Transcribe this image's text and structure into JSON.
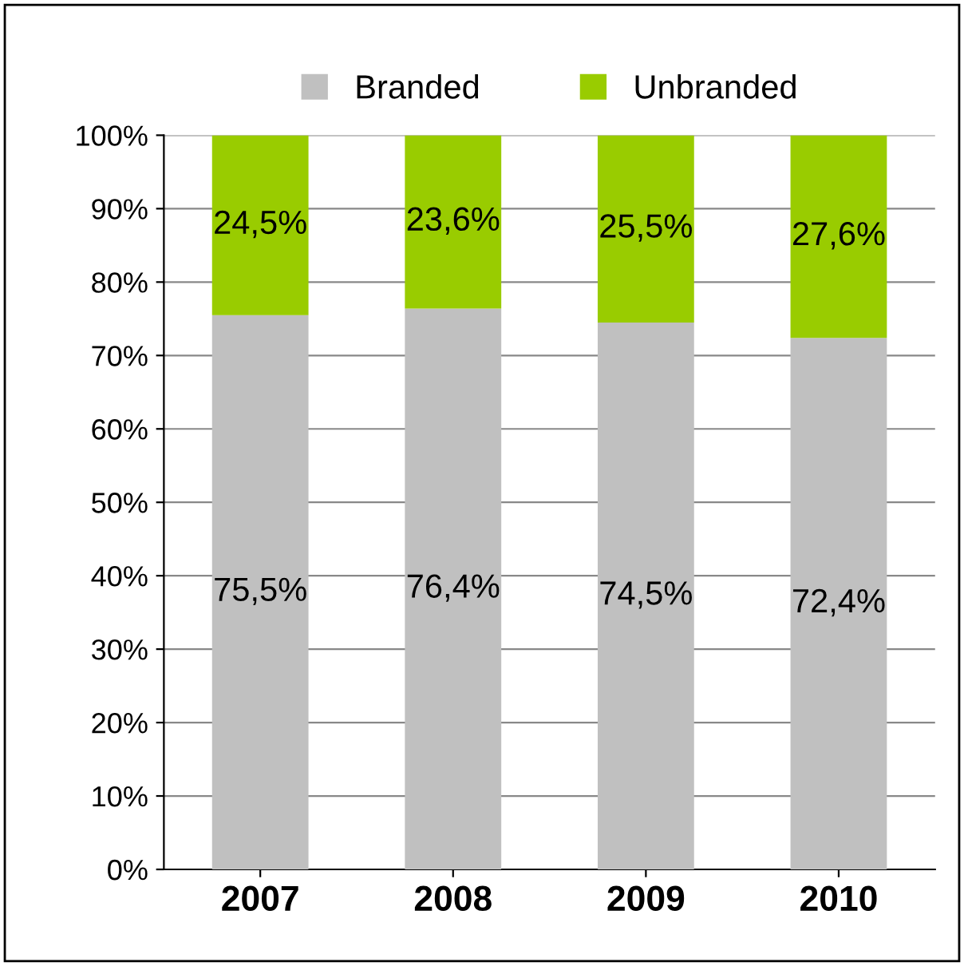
{
  "chart_data": {
    "type": "bar",
    "stacked": true,
    "categories": [
      "2007",
      "2008",
      "2009",
      "2010"
    ],
    "series": [
      {
        "name": "Branded",
        "color": "#c0c0c0",
        "values": [
          75.5,
          76.4,
          74.5,
          72.4
        ],
        "value_labels": [
          "75,5%",
          "76,4%",
          "74,5%",
          "72,4%"
        ]
      },
      {
        "name": "Unbranded",
        "color": "#99cc00",
        "values": [
          24.5,
          23.6,
          25.5,
          27.6
        ],
        "value_labels": [
          "24,5%",
          "23,6%",
          "25,5%",
          "27,6%"
        ]
      }
    ],
    "ylim": [
      0,
      100
    ],
    "yticks": [
      {
        "value": 0,
        "label": "0%"
      },
      {
        "value": 10,
        "label": "10%"
      },
      {
        "value": 20,
        "label": "20%"
      },
      {
        "value": 30,
        "label": "30%"
      },
      {
        "value": 40,
        "label": "40%"
      },
      {
        "value": 50,
        "label": "50%"
      },
      {
        "value": 60,
        "label": "60%"
      },
      {
        "value": 70,
        "label": "70%"
      },
      {
        "value": 80,
        "label": "80%"
      },
      {
        "value": 90,
        "label": "90%"
      },
      {
        "value": 100,
        "label": "100%"
      }
    ],
    "grid": "y",
    "legend": "top"
  }
}
